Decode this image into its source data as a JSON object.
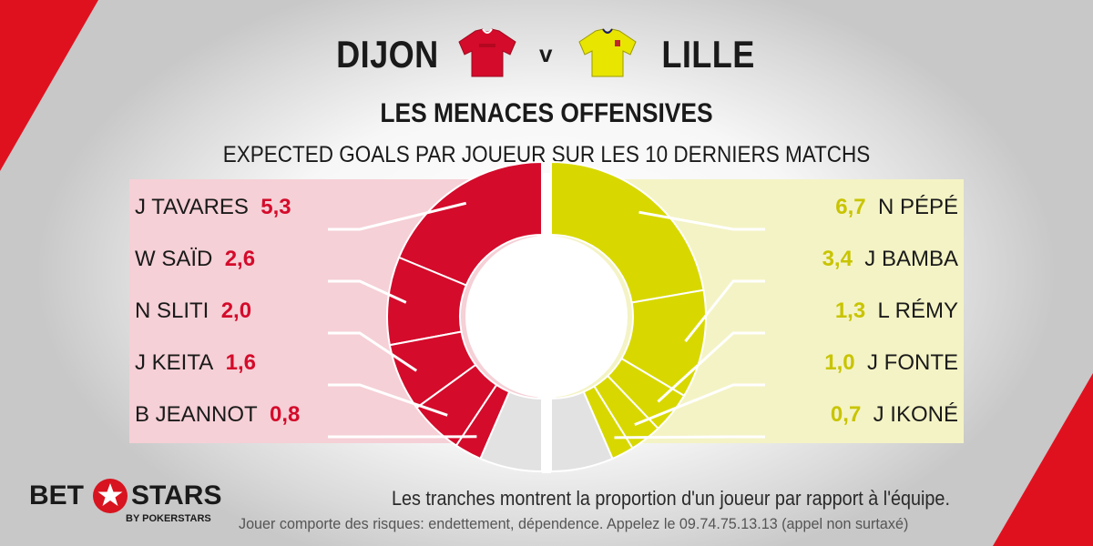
{
  "header": {
    "home_team": "DIJON",
    "versus": "v",
    "away_team": "LILLE",
    "title": "LES MENACES OFFENSIVES",
    "subtitle": "EXPECTED GOALS PAR JOUEUR SUR LES 10 DERNIERS MATCHS"
  },
  "colors": {
    "home": "#d40b2b",
    "away": "#d8d800",
    "home_panel": "#f5d0d6",
    "away_panel": "#f4f3c5",
    "other": "#e2e2e2",
    "corner": "#e0111f"
  },
  "icons": {
    "home_shirt": "red-jersey-icon",
    "away_shirt": "yellow-jersey-icon",
    "logo_star": "star-icon"
  },
  "chart_data": {
    "type": "pie",
    "title": "LES MENACES OFFENSIVES",
    "subtitle": "EXPECTED GOALS PAR JOUEUR SUR LES 10 DERNIERS MATCHS",
    "series": [
      {
        "name": "DIJON",
        "players": [
          "J TAVARES",
          "W SAÏD",
          "N SLITI",
          "J KEITA",
          "B JEANNOT"
        ],
        "labels": [
          "5,3",
          "2,6",
          "2,0",
          "1,6",
          "0,8"
        ],
        "values": [
          5.3,
          2.6,
          2.0,
          1.6,
          0.8
        ],
        "other_share": 0.13
      },
      {
        "name": "LILLE",
        "players": [
          "N PÉPÉ",
          "J BAMBA",
          "L RÉMY",
          "J FONTE",
          "J IKONÉ"
        ],
        "labels": [
          "6,7",
          "3,4",
          "1,3",
          "1,0",
          "0,7"
        ],
        "values": [
          6.7,
          3.4,
          1.3,
          1.0,
          0.7
        ],
        "other_share": 0.13
      }
    ]
  },
  "footer": {
    "note": "Les tranches montrent la proportion d'un joueur par rapport à l'équipe.",
    "disclaimer": "Jouer comporte des risques: endettement, dépendence. Appelez le 09.74.75.13.13 (appel non surtaxé)",
    "logo_left": "BET",
    "logo_right": "STARS",
    "logo_sub": "BY POKERSTARS"
  }
}
